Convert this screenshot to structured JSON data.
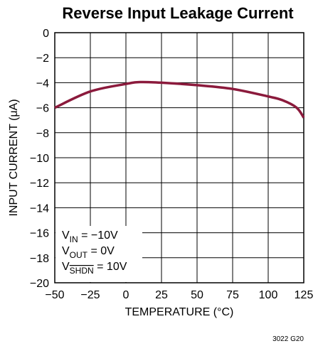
{
  "chart_data": {
    "type": "line",
    "title": "Reverse Input Leakage Current",
    "x_label": "TEMPERATURE (°C)",
    "y_label": "INPUT CURRENT (μA)",
    "footnote": "3022 G20",
    "x": [
      -50,
      -25,
      0,
      10,
      25,
      50,
      75,
      100,
      110,
      120,
      125
    ],
    "series": [
      {
        "name": "Input current",
        "color": "#8b1a3c",
        "values": [
          -6.0,
          -4.7,
          -4.1,
          -3.95,
          -4.0,
          -4.2,
          -4.5,
          -5.1,
          -5.4,
          -6.0,
          -6.8
        ]
      }
    ],
    "xlim": [
      -50,
      125
    ],
    "xticks": [
      {
        "value": -50,
        "label": "−50"
      },
      {
        "value": -25,
        "label": "−25"
      },
      0,
      25,
      50,
      75,
      100,
      125
    ],
    "ylim": [
      -20,
      0
    ],
    "yticks": [
      0,
      {
        "value": -2,
        "label": "−2"
      },
      {
        "value": -4,
        "label": "−4"
      },
      {
        "value": -6,
        "label": "−6"
      },
      {
        "value": -8,
        "label": "−8"
      },
      {
        "value": -10,
        "label": "−10"
      },
      {
        "value": -12,
        "label": "−12"
      },
      {
        "value": -14,
        "label": "−14"
      },
      {
        "value": -16,
        "label": "−16"
      },
      {
        "value": -18,
        "label": "−18"
      },
      {
        "value": -20,
        "label": "−20"
      }
    ],
    "grid": true,
    "annotations": [
      {
        "text": "V",
        "sub": "IN",
        "after": " = −10V"
      },
      {
        "text": "V",
        "sub": "OUT",
        "after": " = 0V"
      },
      {
        "text": "V",
        "sub": "SHDN",
        "after": " = 10V",
        "overline": true
      }
    ]
  }
}
